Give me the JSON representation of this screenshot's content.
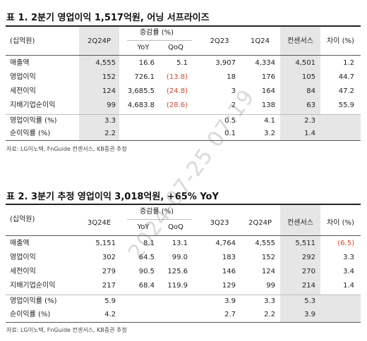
{
  "table1": {
    "title": "표 1. 2분기 영업이익 1,517억원, 어닝 서프라이즈",
    "unit": "(십억원)",
    "headers": {
      "p1": "2Q24P",
      "growth": "증감률 (%)",
      "yoy": "YoY",
      "qoq": "QoQ",
      "p2": "2Q23",
      "p3": "1Q24",
      "consensus": "컨센서스",
      "diff": "차이 (%)"
    },
    "rows": [
      {
        "label": "매출액",
        "cur": "4,555",
        "yoy": "16.6",
        "qoq": "5.1",
        "p2": "3,907",
        "p3": "4,334",
        "cons": "4,501",
        "diff": "1.2"
      },
      {
        "label": "영업이익",
        "cur": "152",
        "yoy": "726.1",
        "qoq": "(13.8)",
        "p2": "18",
        "p3": "176",
        "cons": "105",
        "diff": "44.7"
      },
      {
        "label": "세전이익",
        "cur": "124",
        "yoy": "3,685.5",
        "qoq": "(24.8)",
        "p2": "3",
        "p3": "164",
        "cons": "84",
        "diff": "47.2"
      },
      {
        "label": "지배기업순이익",
        "cur": "99",
        "yoy": "4,683.8",
        "qoq": "(28.6)",
        "p2": "2",
        "p3": "138",
        "cons": "63",
        "diff": "55.9"
      }
    ],
    "ratios": [
      {
        "label": "영업이익률 (%)",
        "cur": "3.3",
        "p2": "0.5",
        "p3": "4.1",
        "cons": "2.3"
      },
      {
        "label": "순이익률 (%)",
        "cur": "2.2",
        "p2": "0.1",
        "p3": "3.2",
        "cons": "1.4"
      }
    ],
    "source": "자료: LG이노텍, FnGuide 컨센서스, KB증권 추정"
  },
  "table2": {
    "title": "표 2. 3분기 추정 영업이익 3,018억원, +65% YoY",
    "unit": "(십억원)",
    "headers": {
      "p1": "3Q24E",
      "growth": "증감률 (%)",
      "yoy": "YoY",
      "qoq": "QoQ",
      "p2": "3Q23",
      "p3": "2Q24P",
      "consensus": "컨센서스",
      "diff": "차이 (%)"
    },
    "rows": [
      {
        "label": "매출액",
        "cur": "5,151",
        "yoy": "8.1",
        "qoq": "13.1",
        "p2": "4,764",
        "p3": "4,555",
        "cons": "5,511",
        "diff": "(6.5)"
      },
      {
        "label": "영업이익",
        "cur": "302",
        "yoy": "64.5",
        "qoq": "99.0",
        "p2": "183",
        "p3": "152",
        "cons": "292",
        "diff": "3.3"
      },
      {
        "label": "세전이익",
        "cur": "279",
        "yoy": "90.5",
        "qoq": "125.6",
        "p2": "146",
        "p3": "124",
        "cons": "270",
        "diff": "3.4"
      },
      {
        "label": "지배기업순이익",
        "cur": "217",
        "yoy": "68.4",
        "qoq": "119.9",
        "p2": "129",
        "p3": "99",
        "cons": "214",
        "diff": "1.4"
      }
    ],
    "ratios": [
      {
        "label": "영업이익률 (%)",
        "cur": "5.9",
        "p2": "3.9",
        "p3": "3.3",
        "cons": "5.3"
      },
      {
        "label": "순이익률 (%)",
        "cur": "4.2",
        "p2": "2.7",
        "p3": "2.2",
        "cons": "3.9"
      }
    ],
    "source": "자료: LG이노텍, FnGuide 컨센서스, KB증권 추정"
  },
  "watermark": "2024-07-25 07:19",
  "colors": {
    "negative": "#d0482f",
    "shade": "#e6e6e6"
  }
}
